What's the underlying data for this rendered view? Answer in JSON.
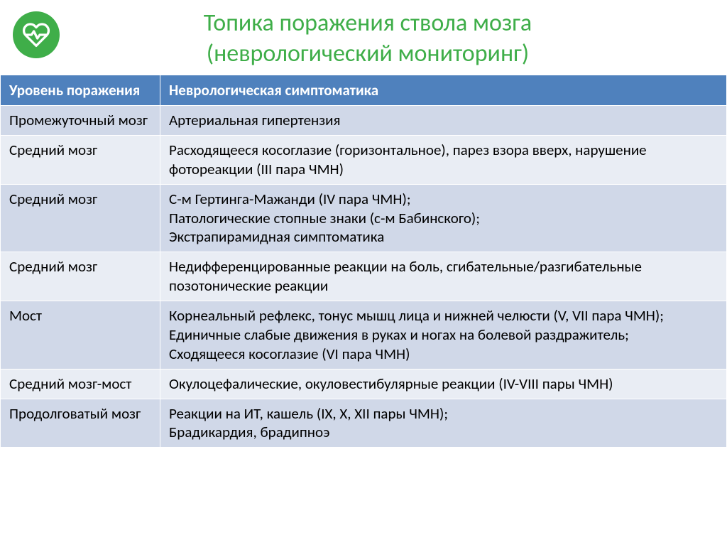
{
  "colors": {
    "icon_bg": "#3fae49",
    "icon_stroke": "#ffffff",
    "title": "#3fae49",
    "th_bg": "#4f81bd",
    "th_text": "#ffffff",
    "row_alt_a": "#d0d8e8",
    "row_alt_b": "#e9edf4",
    "cell_text": "#000000",
    "cell_border": "#ffffff"
  },
  "title": {
    "line1": "Топика поражения ствола мозга",
    "line2": "(неврологический мониторинг)"
  },
  "table": {
    "headers": [
      "Уровень поражения",
      "Неврологическая симптоматика"
    ],
    "rows": [
      {
        "level": "Промежуточный мозг",
        "symptoms": "Артериальная гипертензия"
      },
      {
        "level": "Средний мозг",
        "symptoms": "Расходящееся косоглазие (горизонтальное), парез взора вверх, нарушение фотореакции (III пара ЧМН)"
      },
      {
        "level": "Средний мозг",
        "symptoms": "С-м Гертинга-Мажанди (IV пара ЧМН);\nПатологические стопные знаки (с-м Бабинского);\nЭкстрапирамидная симптоматика"
      },
      {
        "level": "Средний мозг",
        "symptoms": "Недифференцированные реакции на боль, сгибательные/разгибательные позотонические реакции"
      },
      {
        "level": "Мост",
        "symptoms": "Корнеальный рефлекс, тонус мышц лица и нижней челюсти (V, VII пара ЧМН);\nЕдиничные слабые движения в руках и ногах на болевой раздражитель;\nСходящееся косоглазие (VI пара ЧМН)"
      },
      {
        "level": "Средний мозг-мост",
        "symptoms": "Окулоцефалические, окуловестибулярные реакции (IV-VIII пары ЧМН)"
      },
      {
        "level": "Продолговатый мозг",
        "symptoms": "Реакции на ИТ, кашель (IX, X, XII пары ЧМН);\nБрадикардия, брадипноэ"
      }
    ]
  }
}
